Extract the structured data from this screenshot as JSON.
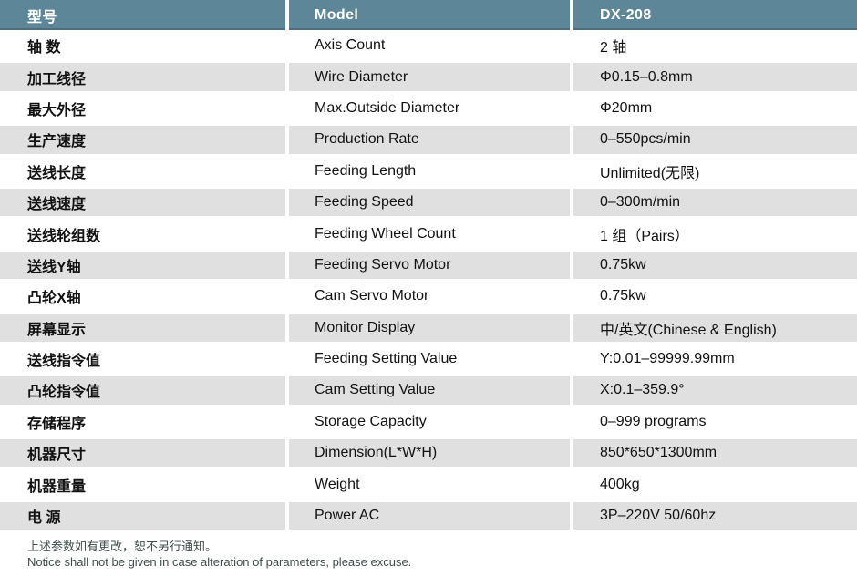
{
  "table": {
    "colors": {
      "header_bg": "#5d8799",
      "stripe_bg": "#e0e0e0"
    },
    "header": {
      "cn": "型号",
      "en": "Model",
      "value": "DX-208"
    },
    "rows": [
      {
        "cn": "轴 数",
        "en": "Axis Count",
        "value": "2 轴"
      },
      {
        "cn": "加工线径",
        "en": "Wire Diameter",
        "value": "Φ0.15–0.8mm"
      },
      {
        "cn": "最大外径",
        "en": "Max.Outside Diameter",
        "value": "Φ20mm"
      },
      {
        "cn": "生产速度",
        "en": "Production Rate",
        "value": "0–550pcs/min"
      },
      {
        "cn": "送线长度",
        "en": "Feeding Length",
        "value": "Unlimited(无限)"
      },
      {
        "cn": "送线速度",
        "en": "Feeding Speed",
        "value": "0–300m/min"
      },
      {
        "cn": "送线轮组数",
        "en": "Feeding Wheel Count",
        "value": "1 组（Pairs）"
      },
      {
        "cn": "送线Y轴",
        "en": "Feeding Servo Motor",
        "value": "0.75kw"
      },
      {
        "cn": "凸轮X轴",
        "en": "Cam Servo Motor",
        "value": "0.75kw"
      },
      {
        "cn": "屏幕显示",
        "en": "Monitor Display",
        "value": "中/英文(Chinese & English)"
      },
      {
        "cn": "送线指令值",
        "en": "Feeding Setting Value",
        "value": "Y:0.01–99999.99mm"
      },
      {
        "cn": "凸轮指令值",
        "en": "Cam Setting Value",
        "value": "X:0.1–359.9°"
      },
      {
        "cn": "存储程序",
        "en": "Storage Capacity",
        "value": "0–999 programs"
      },
      {
        "cn": "机器尺寸",
        "en": "Dimension(L*W*H)",
        "value": "850*650*1300mm"
      },
      {
        "cn": "机器重量",
        "en": "Weight",
        "value": "400kg"
      },
      {
        "cn": "电 源",
        "en": "Power AC",
        "value": "3P–220V 50/60hz"
      }
    ],
    "footer": {
      "line1_cn": "上述参数如有更改，恕不另行通知。",
      "line2_en": "Notice shall not be given in case alteration of parameters, please excuse."
    }
  }
}
